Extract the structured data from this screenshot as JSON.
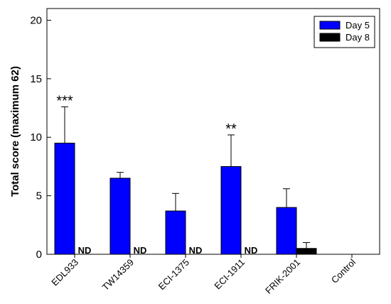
{
  "chart_data": {
    "type": "bar",
    "ylabel": "Total score (maximum 62)",
    "xlabel": "",
    "ylim": [
      0,
      21
    ],
    "yticks": [
      0,
      5,
      10,
      15,
      20
    ],
    "grid": false,
    "legend_position": "top-right",
    "categories": [
      "EDL933",
      "TW14359",
      "ECI-1375",
      "ECI-1911",
      "FRIK-2001",
      "Control"
    ],
    "series": [
      {
        "name": "Day 5",
        "color": "#0000ff",
        "values": [
          9.5,
          6.5,
          3.7,
          7.5,
          4.0,
          0
        ],
        "error": [
          3.1,
          0.5,
          1.5,
          2.7,
          1.6,
          0
        ]
      },
      {
        "name": "Day 8",
        "color": "#000000",
        "values": [
          null,
          null,
          null,
          null,
          0.5,
          0
        ],
        "error": [
          null,
          null,
          null,
          null,
          0.5,
          0
        ]
      }
    ],
    "annotations": [
      {
        "category": "EDL933",
        "series": "Day 5",
        "text": "***"
      },
      {
        "category": "ECI-1911",
        "series": "Day 5",
        "text": "**"
      },
      {
        "category": "EDL933",
        "series": "Day 8",
        "text": "ND"
      },
      {
        "category": "TW14359",
        "series": "Day 8",
        "text": "ND"
      },
      {
        "category": "ECI-1375",
        "series": "Day 8",
        "text": "ND"
      },
      {
        "category": "ECI-1911",
        "series": "Day 8",
        "text": "ND"
      }
    ]
  }
}
